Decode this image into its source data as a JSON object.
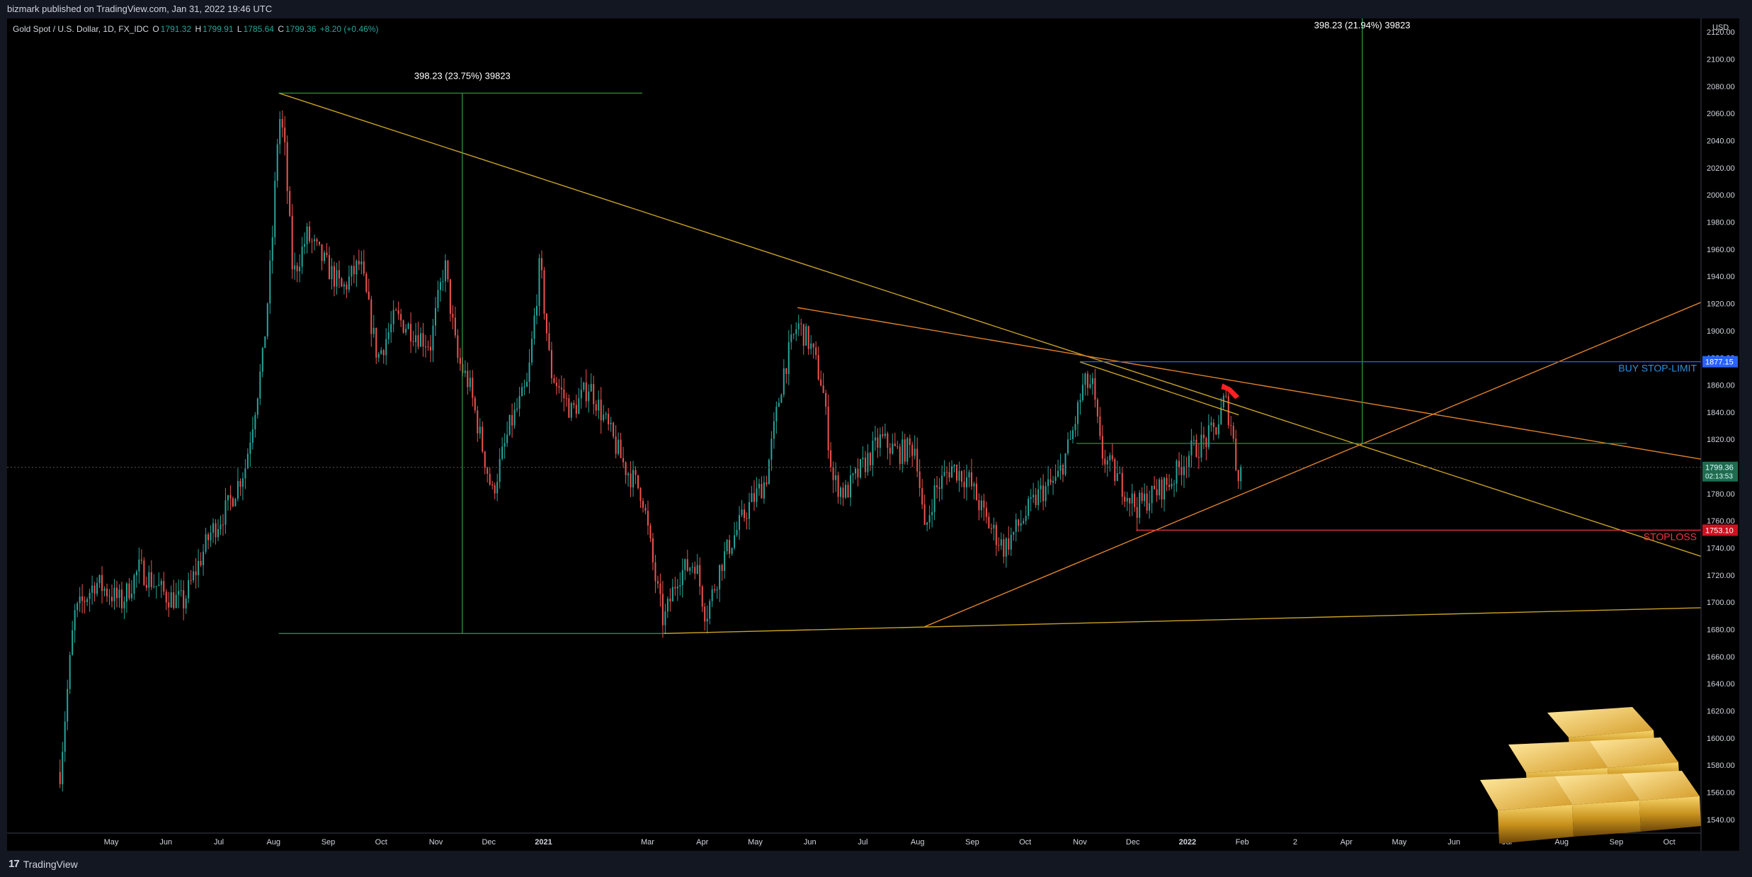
{
  "publish_line": "bizmark published on TradingView.com, Jan 31, 2022 19:46 UTC",
  "symbol": {
    "name": "Gold Spot / U.S. Dollar, 1D, FX_IDC",
    "o_label": "O",
    "o": "1791.32",
    "h_label": "H",
    "h": "1799.91",
    "l_label": "L",
    "l": "1785.64",
    "c_label": "C",
    "c": "1799.36",
    "change": "+8.20 (+0.46%)"
  },
  "branding": {
    "name": "TradingView",
    "mark": "17"
  },
  "colors": {
    "background": "#000000",
    "up": "#26a69a",
    "down": "#ef5350",
    "trend_yellow": "#c9a227",
    "trend_orange": "#e0822b",
    "measure_green": "#2ea043",
    "buy_blue": "#2962ff",
    "stop_red": "#f23645"
  },
  "chart_data": {
    "type": "candlestick",
    "title": "Gold Spot / U.S. Dollar, 1D, FX_IDC",
    "currency": "USD",
    "y_range": [
      1530,
      2130
    ],
    "y_ticks": [
      1540,
      1560,
      1580,
      1600,
      1620,
      1640,
      1660,
      1680,
      1700,
      1720,
      1740,
      1760,
      1780,
      1800,
      1820,
      1840,
      1860,
      1880,
      1900,
      1920,
      1940,
      1960,
      1980,
      2000,
      2020,
      2040,
      2060,
      2080,
      2100,
      2120
    ],
    "x_ticks": [
      {
        "label": "May",
        "t": 29
      },
      {
        "label": "Jun",
        "t": 60
      },
      {
        "label": "Jul",
        "t": 90
      },
      {
        "label": "Aug",
        "t": 121
      },
      {
        "label": "Sep",
        "t": 152
      },
      {
        "label": "Oct",
        "t": 182
      },
      {
        "label": "Nov",
        "t": 213
      },
      {
        "label": "Dec",
        "t": 243
      },
      {
        "label": "2021",
        "t": 274
      },
      {
        "label": "Mar",
        "t": 333
      },
      {
        "label": "Apr",
        "t": 364
      },
      {
        "label": "May",
        "t": 394
      },
      {
        "label": "Jun",
        "t": 425
      },
      {
        "label": "Jul",
        "t": 455
      },
      {
        "label": "Aug",
        "t": 486
      },
      {
        "label": "Sep",
        "t": 517
      },
      {
        "label": "Oct",
        "t": 547
      },
      {
        "label": "Nov",
        "t": 578
      },
      {
        "label": "Dec",
        "t": 608
      },
      {
        "label": "2022",
        "t": 639
      },
      {
        "label": "Feb",
        "t": 670
      },
      {
        "label": "2",
        "t": 700
      },
      {
        "label": "Apr",
        "t": 729
      },
      {
        "label": "May",
        "t": 759
      },
      {
        "label": "Jun",
        "t": 790
      },
      {
        "label": "Jul",
        "t": 820
      },
      {
        "label": "Aug",
        "t": 851
      },
      {
        "label": "Sep",
        "t": 882
      },
      {
        "label": "Oct",
        "t": 912
      }
    ],
    "t_range": [
      -30,
      930
    ],
    "price_path": [
      [
        0,
        1575
      ],
      [
        8,
        1690
      ],
      [
        20,
        1715
      ],
      [
        35,
        1700
      ],
      [
        45,
        1725
      ],
      [
        60,
        1705
      ],
      [
        70,
        1700
      ],
      [
        85,
        1750
      ],
      [
        95,
        1770
      ],
      [
        105,
        1800
      ],
      [
        115,
        1880
      ],
      [
        120,
        1960
      ],
      [
        124,
        2060
      ],
      [
        127,
        2040
      ],
      [
        132,
        1940
      ],
      [
        140,
        1970
      ],
      [
        150,
        1950
      ],
      [
        160,
        1930
      ],
      [
        170,
        1950
      ],
      [
        180,
        1880
      ],
      [
        190,
        1910
      ],
      [
        200,
        1900
      ],
      [
        210,
        1890
      ],
      [
        218,
        1950
      ],
      [
        225,
        1880
      ],
      [
        232,
        1860
      ],
      [
        240,
        1810
      ],
      [
        245,
        1780
      ],
      [
        255,
        1830
      ],
      [
        265,
        1860
      ],
      [
        272,
        1950
      ],
      [
        278,
        1870
      ],
      [
        290,
        1840
      ],
      [
        300,
        1860
      ],
      [
        310,
        1830
      ],
      [
        320,
        1800
      ],
      [
        330,
        1780
      ],
      [
        337,
        1720
      ],
      [
        342,
        1685
      ],
      [
        350,
        1720
      ],
      [
        360,
        1730
      ],
      [
        366,
        1690
      ],
      [
        375,
        1730
      ],
      [
        390,
        1770
      ],
      [
        400,
        1790
      ],
      [
        410,
        1870
      ],
      [
        418,
        1905
      ],
      [
        425,
        1890
      ],
      [
        432,
        1860
      ],
      [
        438,
        1790
      ],
      [
        445,
        1780
      ],
      [
        455,
        1800
      ],
      [
        465,
        1820
      ],
      [
        475,
        1810
      ],
      [
        485,
        1815
      ],
      [
        490,
        1750
      ],
      [
        495,
        1780
      ],
      [
        505,
        1800
      ],
      [
        515,
        1790
      ],
      [
        525,
        1760
      ],
      [
        535,
        1740
      ],
      [
        545,
        1760
      ],
      [
        555,
        1780
      ],
      [
        565,
        1790
      ],
      [
        573,
        1820
      ],
      [
        580,
        1860
      ],
      [
        585,
        1860
      ],
      [
        590,
        1810
      ],
      [
        600,
        1790
      ],
      [
        610,
        1770
      ],
      [
        620,
        1780
      ],
      [
        630,
        1790
      ],
      [
        640,
        1810
      ],
      [
        650,
        1820
      ],
      [
        656,
        1830
      ],
      [
        660,
        1850
      ],
      [
        664,
        1830
      ],
      [
        667,
        1795
      ],
      [
        670,
        1799
      ]
    ],
    "last_price": "1799.36",
    "countdown": "02:13:53",
    "annotations": {
      "measure_1": "398.23 (23.75%) 39823",
      "measure_2": "398.23 (21.94%) 39823",
      "buy_label": "BUY STOP-LIMIT",
      "buy_price": "1877.15",
      "stop_label": "STOPLOSS",
      "stop_price": "1753.10"
    },
    "lines": [
      {
        "name": "upper-trendline",
        "from": [
          124,
          2075
        ],
        "to": [
          932,
          1733
        ],
        "color": "yellow"
      },
      {
        "name": "second-resistance",
        "from": [
          418,
          1917
        ],
        "to": [
          932,
          1805
        ],
        "color": "orange"
      },
      {
        "name": "rising-support",
        "from": [
          490,
          1682
        ],
        "to": [
          932,
          1922
        ],
        "color": "orange"
      },
      {
        "name": "base-trendline",
        "from": [
          342,
          1677
        ],
        "to": [
          932,
          1696
        ],
        "color": "yellow"
      },
      {
        "name": "symmetrical-top",
        "from": [
          578,
          1877
        ],
        "to": [
          668,
          1838
        ],
        "color": "yellow"
      }
    ],
    "grid": false,
    "legend": "none"
  }
}
